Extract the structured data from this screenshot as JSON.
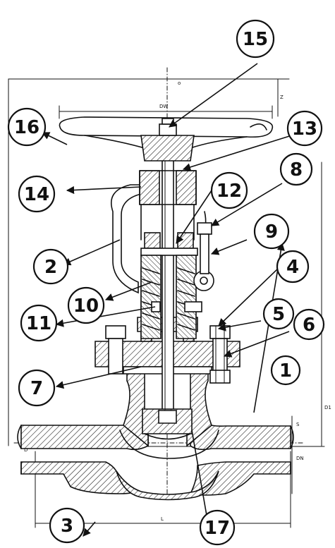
{
  "callouts": [
    {
      "id": "c1",
      "label": "1"
    },
    {
      "id": "c2",
      "label": "2"
    },
    {
      "id": "c3",
      "label": "3"
    },
    {
      "id": "c4",
      "label": "4"
    },
    {
      "id": "c5",
      "label": "5"
    },
    {
      "id": "c6",
      "label": "6"
    },
    {
      "id": "c7",
      "label": "7"
    },
    {
      "id": "c8",
      "label": "8"
    },
    {
      "id": "c9",
      "label": "9"
    },
    {
      "id": "c10",
      "label": "10"
    },
    {
      "id": "c11",
      "label": "11"
    },
    {
      "id": "c12",
      "label": "12"
    },
    {
      "id": "c13",
      "label": "13"
    },
    {
      "id": "c14",
      "label": "14"
    },
    {
      "id": "c15",
      "label": "15"
    },
    {
      "id": "c16",
      "label": "16"
    },
    {
      "id": "c17",
      "label": "17"
    }
  ],
  "dimensions": {
    "handwheel_dia": "DW",
    "height_top": "o",
    "z": "Z",
    "d1": "D1",
    "d": "D",
    "dn": "DN",
    "l": "L",
    "s": "S"
  }
}
